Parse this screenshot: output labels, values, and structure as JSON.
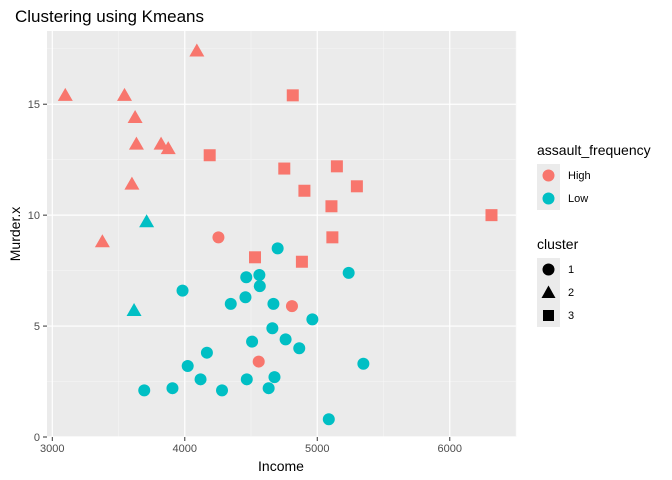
{
  "chart_data": {
    "type": "scatter",
    "title": "Clustering using Kmeans",
    "xlabel": "Income",
    "ylabel": "Murder.x",
    "xlim": [
      2960,
      6500
    ],
    "ylim": [
      0,
      18.3
    ],
    "x_ticks": [
      3000,
      4000,
      5000,
      6000
    ],
    "y_ticks": [
      0,
      5,
      10,
      15
    ],
    "grid": true,
    "legend_position": "right",
    "colors": {
      "High": "#F8766D",
      "Low": "#00BFC4"
    },
    "shapes": {
      "1": "circle",
      "2": "triangle",
      "3": "square"
    },
    "legends": [
      {
        "title": "assault_frequency",
        "entries": [
          "High",
          "Low"
        ]
      },
      {
        "title": "cluster",
        "entries": [
          "1",
          "2",
          "3"
        ]
      }
    ],
    "points": [
      {
        "x": 3098,
        "y": 15.4,
        "group": "High",
        "cluster": "2"
      },
      {
        "x": 3545,
        "y": 15.4,
        "group": "High",
        "cluster": "2"
      },
      {
        "x": 4091,
        "y": 17.4,
        "group": "High",
        "cluster": "2"
      },
      {
        "x": 3625,
        "y": 14.4,
        "group": "High",
        "cluster": "2"
      },
      {
        "x": 3635,
        "y": 13.2,
        "group": "High",
        "cluster": "2"
      },
      {
        "x": 3821,
        "y": 13.2,
        "group": "High",
        "cluster": "2"
      },
      {
        "x": 3875,
        "y": 13.0,
        "group": "High",
        "cluster": "2"
      },
      {
        "x": 3601,
        "y": 11.4,
        "group": "High",
        "cluster": "2"
      },
      {
        "x": 3378,
        "y": 8.8,
        "group": "High",
        "cluster": "2"
      },
      {
        "x": 3712,
        "y": 9.7,
        "group": "Low",
        "cluster": "2"
      },
      {
        "x": 3617,
        "y": 5.7,
        "group": "Low",
        "cluster": "2"
      },
      {
        "x": 4815,
        "y": 15.4,
        "group": "High",
        "cluster": "3"
      },
      {
        "x": 4188,
        "y": 12.7,
        "group": "High",
        "cluster": "3"
      },
      {
        "x": 4751,
        "y": 12.1,
        "group": "High",
        "cluster": "3"
      },
      {
        "x": 5148,
        "y": 12.2,
        "group": "High",
        "cluster": "3"
      },
      {
        "x": 5299,
        "y": 11.3,
        "group": "High",
        "cluster": "3"
      },
      {
        "x": 4903,
        "y": 11.1,
        "group": "High",
        "cluster": "3"
      },
      {
        "x": 5107,
        "y": 10.4,
        "group": "High",
        "cluster": "3"
      },
      {
        "x": 6315,
        "y": 10.0,
        "group": "High",
        "cluster": "3"
      },
      {
        "x": 5114,
        "y": 9.0,
        "group": "High",
        "cluster": "3"
      },
      {
        "x": 4530,
        "y": 8.1,
        "group": "High",
        "cluster": "3"
      },
      {
        "x": 4884,
        "y": 7.9,
        "group": "High",
        "cluster": "3"
      },
      {
        "x": 4254,
        "y": 9.0,
        "group": "High",
        "cluster": "1"
      },
      {
        "x": 4809,
        "y": 5.9,
        "group": "High",
        "cluster": "1"
      },
      {
        "x": 4558,
        "y": 3.4,
        "group": "High",
        "cluster": "1"
      },
      {
        "x": 4701,
        "y": 8.5,
        "group": "Low",
        "cluster": "1"
      },
      {
        "x": 5237,
        "y": 7.4,
        "group": "Low",
        "cluster": "1"
      },
      {
        "x": 4464,
        "y": 7.2,
        "group": "Low",
        "cluster": "1"
      },
      {
        "x": 4563,
        "y": 7.3,
        "group": "Low",
        "cluster": "1"
      },
      {
        "x": 4566,
        "y": 6.8,
        "group": "Low",
        "cluster": "1"
      },
      {
        "x": 3983,
        "y": 6.6,
        "group": "Low",
        "cluster": "1"
      },
      {
        "x": 4458,
        "y": 6.3,
        "group": "Low",
        "cluster": "1"
      },
      {
        "x": 4347,
        "y": 6.0,
        "group": "Low",
        "cluster": "1"
      },
      {
        "x": 4669,
        "y": 6.0,
        "group": "Low",
        "cluster": "1"
      },
      {
        "x": 4963,
        "y": 5.3,
        "group": "Low",
        "cluster": "1"
      },
      {
        "x": 4661,
        "y": 4.9,
        "group": "Low",
        "cluster": "1"
      },
      {
        "x": 4508,
        "y": 4.3,
        "group": "Low",
        "cluster": "1"
      },
      {
        "x": 4761,
        "y": 4.4,
        "group": "Low",
        "cluster": "1"
      },
      {
        "x": 4864,
        "y": 4.0,
        "group": "Low",
        "cluster": "1"
      },
      {
        "x": 4167,
        "y": 3.8,
        "group": "Low",
        "cluster": "1"
      },
      {
        "x": 5348,
        "y": 3.3,
        "group": "Low",
        "cluster": "1"
      },
      {
        "x": 4022,
        "y": 3.2,
        "group": "Low",
        "cluster": "1"
      },
      {
        "x": 4119,
        "y": 2.6,
        "group": "Low",
        "cluster": "1"
      },
      {
        "x": 4468,
        "y": 2.6,
        "group": "Low",
        "cluster": "1"
      },
      {
        "x": 4677,
        "y": 2.7,
        "group": "Low",
        "cluster": "1"
      },
      {
        "x": 3694,
        "y": 2.1,
        "group": "Low",
        "cluster": "1"
      },
      {
        "x": 3907,
        "y": 2.2,
        "group": "Low",
        "cluster": "1"
      },
      {
        "x": 4281,
        "y": 2.1,
        "group": "Low",
        "cluster": "1"
      },
      {
        "x": 4633,
        "y": 2.2,
        "group": "Low",
        "cluster": "1"
      },
      {
        "x": 5087,
        "y": 0.8,
        "group": "Low",
        "cluster": "1"
      }
    ]
  }
}
